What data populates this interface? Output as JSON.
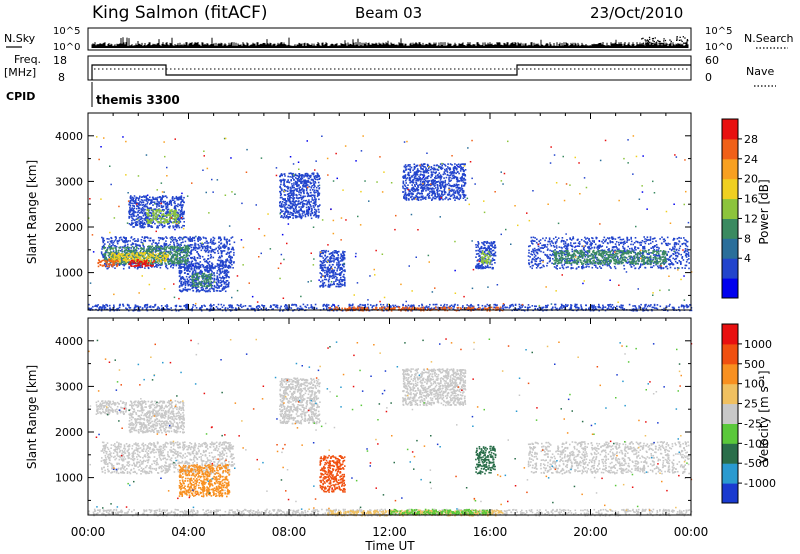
{
  "header": {
    "station": "King Salmon (fitACF)",
    "beam": "Beam 03",
    "date": "23/Oct/2010"
  },
  "top_panels": {
    "nsky_label": "N.Sky",
    "nsearch_label": "N.Search",
    "freq_label_1": "Freq.",
    "freq_label_2": "[MHz]",
    "nave_label": "Nave",
    "cpid_label": "CPID",
    "cpid_value": "themis 3300",
    "left_ticks_noise": [
      "10^5",
      "10^0"
    ],
    "right_ticks_noise": [
      "10^5",
      "10^0"
    ],
    "left_ticks_freq": [
      "18",
      "8"
    ],
    "right_ticks_nave": [
      "60",
      "0"
    ]
  },
  "chart_data": [
    {
      "type": "heatmap",
      "name": "power",
      "ylabel": "Slant Range [km]",
      "ylim": [
        180,
        4500
      ],
      "xlim_hours": [
        0,
        24
      ],
      "y_ticks": [
        "1000",
        "2000",
        "3000",
        "4000"
      ],
      "colorbar": {
        "label": "Power [dB]",
        "ticks": [
          "28",
          "24",
          "20",
          "16",
          "12",
          "8",
          "4"
        ],
        "colors": [
          "#0000ee",
          "#2244cc",
          "#2a6e9a",
          "#3a8a60",
          "#8cc43c",
          "#f0d020",
          "#f8a020",
          "#f06018",
          "#e81010"
        ]
      },
      "patches": [
        {
          "t0": 0.5,
          "t1": 5.8,
          "r0": 1100,
          "r1": 1800,
          "c": "#2244cc"
        },
        {
          "t0": 0.6,
          "t1": 4.0,
          "r0": 1200,
          "r1": 1600,
          "c": "#3a8a60"
        },
        {
          "t0": 0.8,
          "t1": 3.2,
          "r0": 1250,
          "r1": 1450,
          "c": "#f0d020"
        },
        {
          "t0": 1.6,
          "t1": 2.6,
          "r0": 1150,
          "r1": 1300,
          "c": "#e81010"
        },
        {
          "t0": 0.3,
          "t1": 1.2,
          "r0": 1150,
          "r1": 1300,
          "c": "#f06018"
        },
        {
          "t0": 1.6,
          "t1": 3.8,
          "r0": 2000,
          "r1": 2700,
          "c": "#2244cc"
        },
        {
          "t0": 2.3,
          "t1": 3.6,
          "r0": 2100,
          "r1": 2400,
          "c": "#8cc43c"
        },
        {
          "t0": 3.6,
          "t1": 5.6,
          "r0": 600,
          "r1": 1200,
          "c": "#2244cc"
        },
        {
          "t0": 4.1,
          "t1": 4.9,
          "r0": 700,
          "r1": 1000,
          "c": "#3a8a60"
        },
        {
          "t0": 15.4,
          "t1": 16.2,
          "r0": 1100,
          "r1": 1700,
          "c": "#2244cc"
        },
        {
          "t0": 15.6,
          "t1": 16.0,
          "r0": 1200,
          "r1": 1500,
          "c": "#8cc43c"
        },
        {
          "t0": 17.5,
          "t1": 23.9,
          "r0": 1100,
          "r1": 1800,
          "c": "#2244cc"
        },
        {
          "t0": 18.5,
          "t1": 23.0,
          "r0": 1200,
          "r1": 1500,
          "c": "#3a8a60"
        },
        {
          "t0": 12.5,
          "t1": 15.0,
          "r0": 2600,
          "r1": 3400,
          "c": "#2244cc"
        },
        {
          "t0": 7.6,
          "t1": 9.2,
          "r0": 2200,
          "r1": 3200,
          "c": "#2244cc"
        },
        {
          "t0": 9.2,
          "t1": 10.2,
          "r0": 700,
          "r1": 1500,
          "c": "#2244cc"
        },
        {
          "t0": 0.0,
          "t1": 24.0,
          "r0": 180,
          "r1": 320,
          "c": "#2244cc"
        },
        {
          "t0": 9.5,
          "t1": 16.5,
          "r0": 180,
          "r1": 260,
          "c": "#f06018"
        }
      ]
    },
    {
      "type": "heatmap",
      "name": "velocity",
      "ylabel": "Slant Range [km]",
      "ylim": [
        180,
        4500
      ],
      "xlim_hours": [
        0,
        24
      ],
      "y_ticks": [
        "1000",
        "2000",
        "3000",
        "4000"
      ],
      "colorbar": {
        "label": "Velocity [m s⁻¹]",
        "ticks": [
          "1000",
          "500",
          "100",
          "25",
          "-25",
          "-100",
          "-500",
          "-1000"
        ],
        "colors": [
          "#1a3ad0",
          "#2a9ad0",
          "#2a6e4a",
          "#5ac83a",
          "#c8c8c8",
          "#f0c060",
          "#f89020",
          "#f05010",
          "#e81010"
        ]
      },
      "patches": [
        {
          "t0": 0.5,
          "t1": 5.8,
          "r0": 1100,
          "r1": 1800,
          "c": "#c8c8c8"
        },
        {
          "t0": 1.6,
          "t1": 3.8,
          "r0": 2000,
          "r1": 2700,
          "c": "#c8c8c8"
        },
        {
          "t0": 0.3,
          "t1": 1.5,
          "r0": 2400,
          "r1": 2700,
          "c": "#c8c8c8"
        },
        {
          "t0": 3.6,
          "t1": 5.6,
          "r0": 600,
          "r1": 1300,
          "c": "#f89020"
        },
        {
          "t0": 15.4,
          "t1": 16.2,
          "r0": 1100,
          "r1": 1700,
          "c": "#2a6e4a"
        },
        {
          "t0": 17.5,
          "t1": 23.9,
          "r0": 1100,
          "r1": 1800,
          "c": "#c8c8c8"
        },
        {
          "t0": 12.5,
          "t1": 15.0,
          "r0": 2600,
          "r1": 3400,
          "c": "#c8c8c8"
        },
        {
          "t0": 7.6,
          "t1": 9.2,
          "r0": 2200,
          "r1": 3200,
          "c": "#c8c8c8"
        },
        {
          "t0": 9.2,
          "t1": 10.2,
          "r0": 700,
          "r1": 1500,
          "c": "#f05010"
        },
        {
          "t0": 0.0,
          "t1": 24.0,
          "r0": 180,
          "r1": 320,
          "c": "#c8c8c8"
        },
        {
          "t0": 9.5,
          "t1": 16.5,
          "r0": 180,
          "r1": 300,
          "c": "#f0c060"
        },
        {
          "t0": 12.0,
          "t1": 16.0,
          "r0": 200,
          "r1": 320,
          "c": "#5ac83a"
        }
      ]
    }
  ],
  "x_ticks": [
    "00:00",
    "04:00",
    "08:00",
    "12:00",
    "16:00",
    "20:00",
    "00:00"
  ],
  "xlabel": "Time UT"
}
